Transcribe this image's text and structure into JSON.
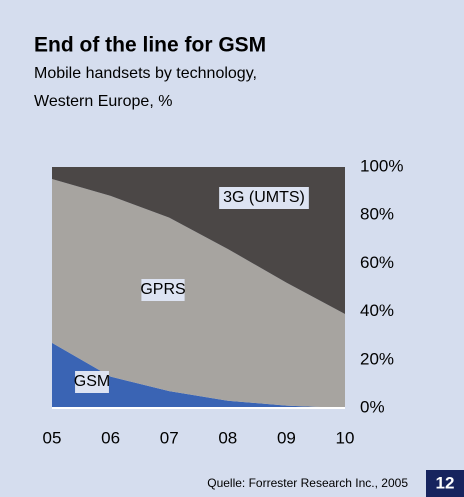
{
  "chart_data": {
    "type": "area",
    "stacked": true,
    "title": "End of the line for GSM",
    "subtitle": [
      "Mobile handsets by technology,",
      "Western Europe, %"
    ],
    "categories": [
      "05",
      "06",
      "07",
      "08",
      "09",
      "10"
    ],
    "series": [
      {
        "name": "GSM",
        "color": "#3a64b4",
        "values": [
          27,
          13,
          7,
          3,
          1,
          0
        ]
      },
      {
        "name": "GPRS",
        "color": "#a7a4a0",
        "values": [
          68,
          75,
          72,
          63,
          51,
          39
        ]
      },
      {
        "name": "3G (UMTS)",
        "color": "#4b4746",
        "values": [
          5,
          12,
          21,
          34,
          48,
          61
        ]
      }
    ],
    "ylim": [
      0,
      100
    ],
    "yticks": [
      {
        "value": 0,
        "label": "0%"
      },
      {
        "value": 20,
        "label": "20%"
      },
      {
        "value": 40,
        "label": "40%"
      },
      {
        "value": 60,
        "label": "60%"
      },
      {
        "value": 80,
        "label": "80%"
      },
      {
        "value": 100,
        "label": "100%"
      }
    ],
    "source": "Quelle: Forrester Research Inc., 2005",
    "page_number": "12"
  }
}
